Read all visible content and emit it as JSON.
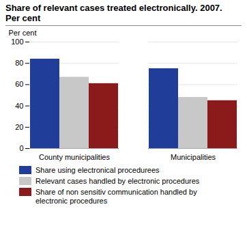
{
  "chart_data": {
    "type": "bar",
    "title": "Share of relevant cases treated electronically. 2007.",
    "subtitle": "Per cent",
    "ylabel": "Per cent",
    "categories": [
      "County municipalities",
      "Municipalities"
    ],
    "series": [
      {
        "name": "Share using electronical procedurees",
        "color": "#1f3d99",
        "values": [
          84,
          75
        ]
      },
      {
        "name": "Relevant cases handled by electronic procedures",
        "color": "#c8c8c8",
        "values": [
          67,
          48
        ]
      },
      {
        "name": "Share of non sensitiv communication handled by\nelectronic procedures",
        "color": "#8b1a1a",
        "values": [
          61,
          45
        ]
      }
    ],
    "ylim": [
      0,
      100
    ],
    "yticks": [
      0,
      20,
      40,
      60,
      80,
      100
    ],
    "grid": true,
    "legend": "bottom"
  }
}
